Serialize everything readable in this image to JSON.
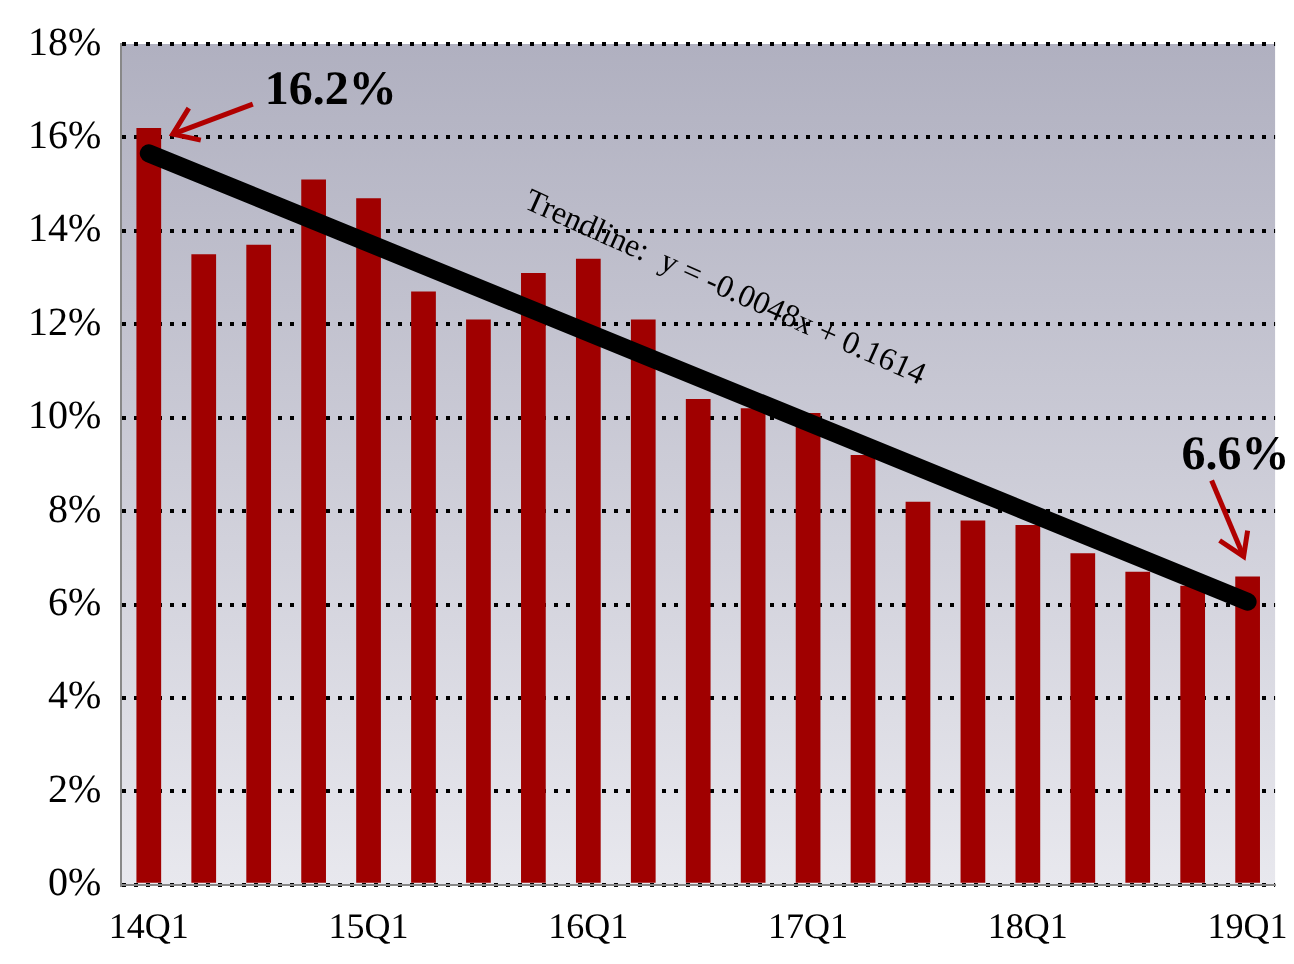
{
  "chart_data": {
    "type": "bar",
    "categories": [
      "14Q1",
      null,
      null,
      null,
      "15Q1",
      null,
      null,
      null,
      "16Q1",
      null,
      null,
      null,
      "17Q1",
      null,
      null,
      null,
      "18Q1",
      null,
      null,
      null,
      "19Q1"
    ],
    "series": [
      {
        "color": "#a00000",
        "values": [
          16.2,
          13.5,
          13.7,
          15.1,
          14.7,
          12.7,
          12.1,
          13.1,
          13.4,
          12.1,
          10.4,
          10.2,
          10.1,
          9.2,
          8.2,
          7.8,
          7.7,
          7.1,
          6.7,
          6.4,
          6.6
        ]
      },
      {
        "type": "line",
        "color": "#000000",
        "values": [
          15.66,
          null,
          null,
          null,
          null,
          null,
          null,
          null,
          null,
          null,
          null,
          null,
          null,
          null,
          null,
          null,
          null,
          null,
          null,
          null,
          6.06
        ]
      }
    ],
    "ylim": [
      0,
      18
    ],
    "yticks": [
      {
        "value": 0,
        "label": "0%"
      },
      {
        "value": 2,
        "label": "2%"
      },
      {
        "value": 4,
        "label": "4%"
      },
      {
        "value": 6,
        "label": "6%"
      },
      {
        "value": 8,
        "label": "8%"
      },
      {
        "value": 10,
        "label": "10%"
      },
      {
        "value": 12,
        "label": "12%"
      },
      {
        "value": 14,
        "label": "14%"
      },
      {
        "value": 16,
        "label": "16%"
      },
      {
        "value": 18,
        "label": "18%"
      }
    ],
    "grid": "y",
    "legend": false,
    "line_style": "solid",
    "marker": "none",
    "annotations": [
      {
        "text": "16.2%",
        "x": "14Q1",
        "y": 16.2
      },
      {
        "text": "6.6%",
        "x": "19Q1",
        "y": 6.6
      },
      "Trendline:  y = -0.0048x + 0.1614"
    ]
  }
}
